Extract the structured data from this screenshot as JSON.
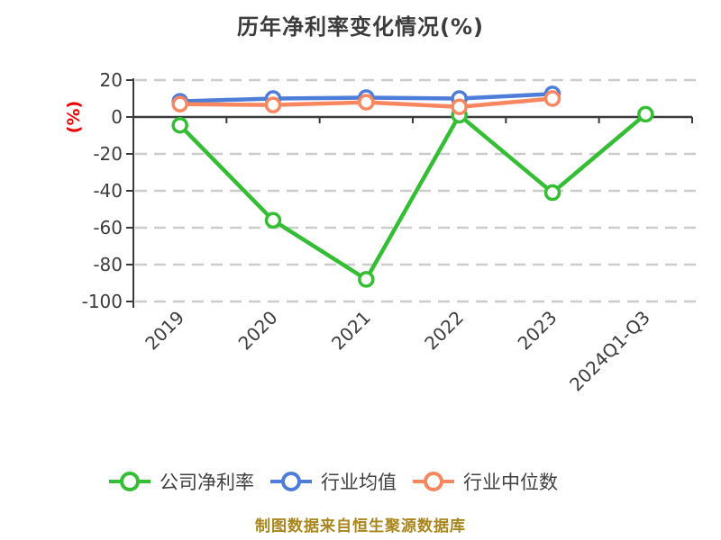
{
  "title": "历年净利率变化情况(%)",
  "caption": "制图数据来自恒生聚源数据库",
  "y_axis_unit_label": "(%)",
  "colors": {
    "company_series": "#33be33",
    "industry_avg_series": "#4e7cd9",
    "industry_median_series": "#f8875f",
    "title_text": "#3c3c3c",
    "axis_text": "#3c3c3c",
    "axis_line": "#3a3a3a",
    "gridline": "#cccccc",
    "y_unit_label": "#ee0000",
    "caption_text": "#a9851c",
    "legend_text": "#404040",
    "marker_fill": "#ffffff"
  },
  "chart_data": {
    "type": "line",
    "title": "历年净利率变化情况(%)",
    "xlabel": "",
    "ylabel": "(%)",
    "categories": [
      "2019",
      "2020",
      "2021",
      "2022",
      "2023",
      "2024Q1-Q3"
    ],
    "y_ticks": [
      20,
      0,
      -20,
      -40,
      -60,
      -80,
      -100
    ],
    "ylim": [
      -100,
      20
    ],
    "grid": "horizontal-dashed",
    "legend_position": "bottom",
    "series": [
      {
        "key": "company-net-margin",
        "name": "公司净利率",
        "color": "#33be33",
        "values": [
          -4.5,
          -56,
          -88,
          1,
          -41,
          1.5
        ]
      },
      {
        "key": "industry-average",
        "name": "行业均值",
        "color": "#4e7cd9",
        "values": [
          8.5,
          10,
          10.5,
          10,
          12.5,
          null
        ]
      },
      {
        "key": "industry-median",
        "name": "行业中位数",
        "color": "#f8875f",
        "values": [
          7,
          6.5,
          8,
          5.5,
          10,
          null
        ]
      }
    ]
  }
}
